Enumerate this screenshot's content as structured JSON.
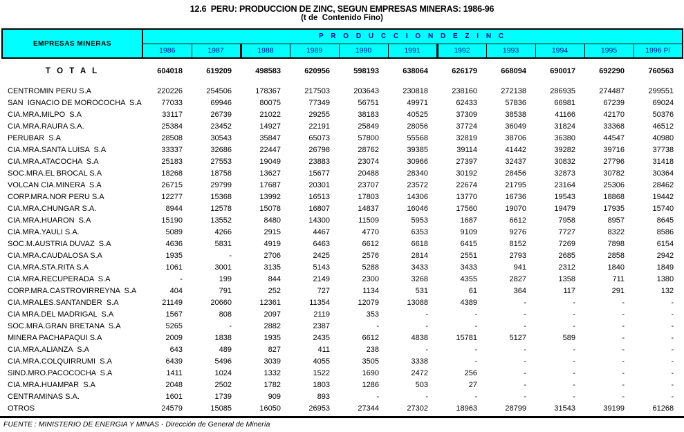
{
  "title": "12.6  PERU: PRODUCCION DE ZINC, SEGUN EMPRESAS MINERAS: 1986-96",
  "subtitle": "(t de  Contenido Fino)",
  "colors": {
    "header_bg": "#00FFFF",
    "border": "#000000",
    "header_text": "#000000"
  },
  "table": {
    "row_header": "EMPRESAS MINERAS",
    "group_header": "P R O D U C C I O N    D E    Z I N C",
    "group_header_plain": "PRODUCCION DE ZINC",
    "years": [
      "1986",
      "1987",
      "1988",
      "1989",
      "1990",
      "1991",
      "1992",
      "1993",
      "1994",
      "1995",
      "1996 P/"
    ],
    "total_row": {
      "label": "T O T A L",
      "values": [
        "604018",
        "619209",
        "498583",
        "620956",
        "598193",
        "638064",
        "626179",
        "668094",
        "690017",
        "692290",
        "760563"
      ]
    },
    "rows": [
      {
        "label": "CENTROMIN PERU S.A",
        "values": [
          "220226",
          "254506",
          "178367",
          "217503",
          "203643",
          "230818",
          "238160",
          "272138",
          "286935",
          "274487",
          "299551"
        ]
      },
      {
        "label": "SAN  IGNACIO DE MOROCOCHA  S.A",
        "values": [
          "77033",
          "69946",
          "80075",
          "77349",
          "56751",
          "49971",
          "62433",
          "57836",
          "66981",
          "67239",
          "69024"
        ]
      },
      {
        "label": "CIA.MRA.MILPO  S.A",
        "values": [
          "33117",
          "26739",
          "21022",
          "29255",
          "38183",
          "40525",
          "37309",
          "38538",
          "41166",
          "42170",
          "50376"
        ]
      },
      {
        "label": "CIA.MRA.RAURA S.A.",
        "values": [
          "25384",
          "23452",
          "14927",
          "22191",
          "25849",
          "28056",
          "37724",
          "36049",
          "31824",
          "33368",
          "46512"
        ]
      },
      {
        "label": "PERUBAR  S.A",
        "values": [
          "28508",
          "30543",
          "35847",
          "65073",
          "57800",
          "55568",
          "32819",
          "38706",
          "36380",
          "44547",
          "40980"
        ]
      },
      {
        "label": "CIA.MRA.SANTA LUISA  S.A",
        "values": [
          "33337",
          "32686",
          "22447",
          "26798",
          "28762",
          "39385",
          "39114",
          "41442",
          "39282",
          "39716",
          "37738"
        ]
      },
      {
        "label": "CIA.MRA.ATACOCHA  S.A",
        "values": [
          "25183",
          "27553",
          "19049",
          "23883",
          "23074",
          "30966",
          "27397",
          "32437",
          "30832",
          "27796",
          "31418"
        ]
      },
      {
        "label": "SOC.MRA.EL BROCAL S.A",
        "values": [
          "18268",
          "18758",
          "13627",
          "15677",
          "20488",
          "28340",
          "30192",
          "28456",
          "32873",
          "30782",
          "30364"
        ]
      },
      {
        "label": "VOLCAN CIA.MINERA  S.A",
        "values": [
          "26715",
          "29799",
          "17687",
          "20301",
          "23707",
          "23572",
          "22674",
          "21795",
          "23164",
          "25306",
          "28462"
        ]
      },
      {
        "label": "CORP.MRA.NOR PERU S.A",
        "values": [
          "12277",
          "15368",
          "13992",
          "16513",
          "17803",
          "14306",
          "13770",
          "16736",
          "19543",
          "18868",
          "19442"
        ]
      },
      {
        "label": "CIA.MRA.CHUNGAR S.A.",
        "values": [
          "8944",
          "12578",
          "15078",
          "16807",
          "14837",
          "16046",
          "17560",
          "19070",
          "19479",
          "17935",
          "15740"
        ]
      },
      {
        "label": "CIA.MRA.HUARON  S.A",
        "values": [
          "15190",
          "13552",
          "8480",
          "14300",
          "11509",
          "5953",
          "1687",
          "6612",
          "7958",
          "8957",
          "8645"
        ]
      },
      {
        "label": "CIA.MRA.YAULI S.A.",
        "values": [
          "5089",
          "4266",
          "2915",
          "4467",
          "4770",
          "6353",
          "9109",
          "9276",
          "7727",
          "8322",
          "8586"
        ]
      },
      {
        "label": "SOC.M.AUSTRIA DUVAZ  S.A",
        "values": [
          "4636",
          "5831",
          "4919",
          "6463",
          "6612",
          "6618",
          "6415",
          "8152",
          "7269",
          "7898",
          "6154"
        ]
      },
      {
        "label": "CIA.MRA.CAUDALOSA S.A",
        "values": [
          "1935",
          "-",
          "2706",
          "2425",
          "2576",
          "2814",
          "2551",
          "2793",
          "2685",
          "2858",
          "2942"
        ]
      },
      {
        "label": "CIA.MRA.STA.RITA S.A",
        "values": [
          "1061",
          "3001",
          "3135",
          "5143",
          "5288",
          "3433",
          "3433",
          "941",
          "2312",
          "1840",
          "1849"
        ]
      },
      {
        "label": "CIA.MRA.RECUPERADA  S.A",
        "values": [
          "-",
          "199",
          "844",
          "2149",
          "2300",
          "3268",
          "4355",
          "2827",
          "1358",
          "711",
          "1380"
        ]
      },
      {
        "label": "CORP.MRA.CASTROVIRREYNA  S.A",
        "values": [
          "404",
          "791",
          "252",
          "727",
          "1134",
          "531",
          "61",
          "364",
          "117",
          "291",
          "132"
        ]
      },
      {
        "label": "CIA.MRALES.SANTANDER  S.A",
        "values": [
          "21149",
          "20660",
          "12361",
          "11354",
          "12079",
          "13088",
          "4389",
          "-",
          "-",
          "-",
          "-"
        ]
      },
      {
        "label": "CIA MRA.DEL MADRIGAL  S.A",
        "values": [
          "1567",
          "808",
          "2097",
          "2119",
          "353",
          "-",
          "-",
          "-",
          "-",
          "-",
          "-"
        ]
      },
      {
        "label": "SOC.MRA.GRAN BRETANA  S.A",
        "values": [
          "5265",
          "-",
          "2882",
          "2387",
          "-",
          "-",
          "-",
          "-",
          "-",
          "-",
          "-"
        ]
      },
      {
        "label": "MINERA PACHAPAQUI S.A",
        "values": [
          "2009",
          "1838",
          "1935",
          "2435",
          "6612",
          "4838",
          "15781",
          "5127",
          "589",
          "-",
          "-"
        ]
      },
      {
        "label": "CIA.MRA.ALIANZA  S.A",
        "values": [
          "643",
          "489",
          "827",
          "411",
          "238",
          "-",
          "-",
          "-",
          "-",
          "-",
          "-"
        ]
      },
      {
        "label": "CIA.MRA.COLQUIRRUMI  S.A",
        "values": [
          "6439",
          "5496",
          "3039",
          "4055",
          "3505",
          "3338",
          "-",
          "-",
          "-",
          "-",
          "-"
        ]
      },
      {
        "label": "SIND.MRO.PACOCOCHA  S.A",
        "values": [
          "1411",
          "1024",
          "1332",
          "1522",
          "1690",
          "2472",
          "256",
          "-",
          "-",
          "-",
          "-"
        ]
      },
      {
        "label": "CIA.MRA.HUAMPAR  S.A",
        "values": [
          "2048",
          "2502",
          "1782",
          "1803",
          "1286",
          "503",
          "27",
          "-",
          "-",
          "-",
          "-"
        ]
      },
      {
        "label": "CENTRAMINAS S.A.",
        "values": [
          "1601",
          "1739",
          "909",
          "893",
          "-",
          "-",
          "-",
          "-",
          "-",
          "-",
          "-"
        ]
      },
      {
        "label": "OTROS",
        "values": [
          "24579",
          "15085",
          "16050",
          "26953",
          "27344",
          "27302",
          "18963",
          "28799",
          "31543",
          "39199",
          "61268"
        ]
      }
    ]
  },
  "footer": "FUENTE : MINISTERIO DE ENERGIA Y MINAS - Dirección de General de Minería"
}
